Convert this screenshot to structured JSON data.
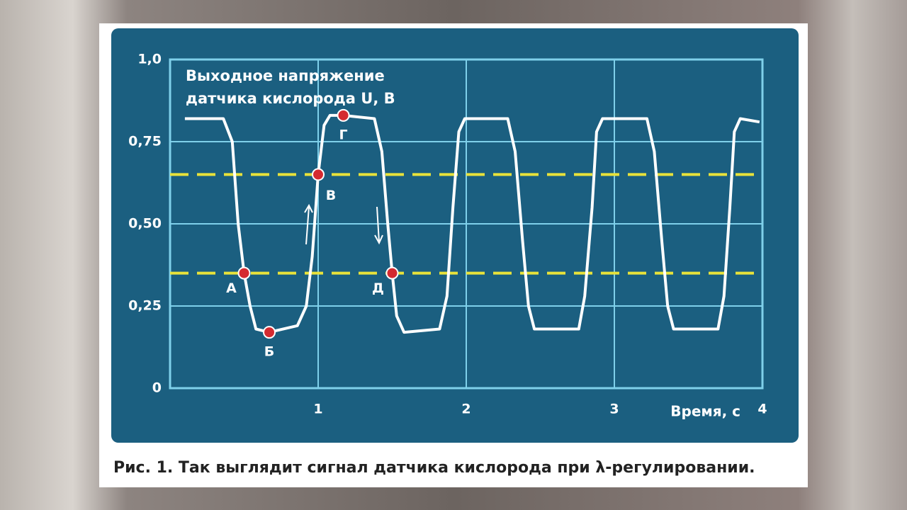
{
  "chart_data": {
    "type": "line",
    "annotations": [
      "Выходное напряжение",
      "датчика кислорода U, В"
    ],
    "x_label": "Время, с",
    "caption": "Рис. 1. Так выглядит сигнал датчика кислорода при λ-регулировании.",
    "xlim": [
      0,
      4
    ],
    "ylim": [
      0,
      1
    ],
    "xticks": [
      1,
      2,
      3,
      4
    ],
    "yticks": [
      0,
      {
        "value": 0.25,
        "label": "0,25"
      },
      {
        "value": 0.5,
        "label": "0,50"
      },
      {
        "value": 0.75,
        "label": "0,75"
      },
      {
        "value": 1,
        "label": "1,0"
      }
    ],
    "grid": true,
    "thresholds": [
      0.65,
      0.35
    ],
    "threshold_color": "#e8e23a",
    "series": [
      {
        "color": "#ffffff",
        "x": [
          0.1,
          0.36,
          0.42,
          0.46,
          0.5,
          0.54,
          0.58,
          0.67,
          0.86,
          0.92,
          0.96,
          1.0,
          1.04,
          1.08,
          1.17,
          1.38,
          1.43,
          1.47,
          1.5,
          1.53,
          1.58,
          1.82,
          1.87,
          1.91,
          1.95,
          1.99,
          2.28,
          2.33,
          2.38,
          2.42,
          2.46,
          2.76,
          2.8,
          2.85,
          2.88,
          2.92,
          3.22,
          3.27,
          3.32,
          3.36,
          3.4,
          3.7,
          3.74,
          3.78,
          3.81,
          3.85,
          3.98
        ],
        "values": [
          0.82,
          0.82,
          0.75,
          0.5,
          0.35,
          0.25,
          0.18,
          0.17,
          0.19,
          0.25,
          0.4,
          0.65,
          0.8,
          0.83,
          0.83,
          0.82,
          0.72,
          0.5,
          0.35,
          0.22,
          0.17,
          0.18,
          0.28,
          0.55,
          0.78,
          0.82,
          0.82,
          0.72,
          0.45,
          0.25,
          0.18,
          0.18,
          0.28,
          0.55,
          0.78,
          0.82,
          0.82,
          0.72,
          0.45,
          0.25,
          0.18,
          0.18,
          0.28,
          0.55,
          0.78,
          0.82,
          0.81
        ]
      }
    ],
    "points": [
      {
        "label": "А",
        "x": 0.5,
        "y": 0.35
      },
      {
        "label": "Б",
        "x": 0.67,
        "y": 0.17
      },
      {
        "label": "В",
        "x": 1.0,
        "y": 0.65
      },
      {
        "label": "Г",
        "x": 1.17,
        "y": 0.83
      },
      {
        "label": "Д",
        "x": 1.5,
        "y": 0.35
      }
    ],
    "point_color": "#d42a30"
  }
}
